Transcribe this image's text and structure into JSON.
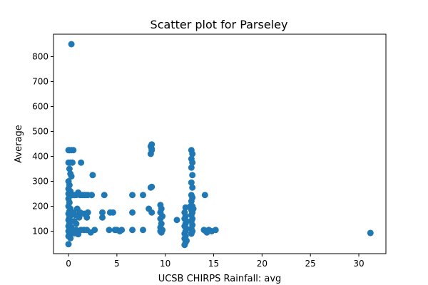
{
  "chart_data": {
    "type": "scatter",
    "title": "Scatter plot for Parseley",
    "xlabel": "UCSB CHIRPS Rainfall: avg",
    "ylabel": "Average",
    "xlim": [
      -1.55,
      32.8
    ],
    "ylim": [
      10,
      890
    ],
    "xticks": [
      0,
      5,
      10,
      15,
      20,
      25,
      30
    ],
    "yticks": [
      100,
      200,
      300,
      400,
      500,
      600,
      700,
      800
    ],
    "grid": false,
    "marker_color": "#1f77b4",
    "points": [
      [
        0.3,
        850
      ],
      [
        0.0,
        425
      ],
      [
        0.3,
        425
      ],
      [
        0.5,
        425
      ],
      [
        0.1,
        425
      ],
      [
        0.0,
        375
      ],
      [
        0.2,
        375
      ],
      [
        0.4,
        375
      ],
      [
        1.3,
        375
      ],
      [
        0.1,
        350
      ],
      [
        0.2,
        330
      ],
      [
        0.3,
        320
      ],
      [
        2.5,
        325
      ],
      [
        0.0,
        300
      ],
      [
        0.1,
        285
      ],
      [
        0.0,
        270
      ],
      [
        0.2,
        260
      ],
      [
        0.0,
        250
      ],
      [
        0.2,
        245
      ],
      [
        0.4,
        245
      ],
      [
        0.6,
        245
      ],
      [
        0.8,
        245
      ],
      [
        1.0,
        255
      ],
      [
        1.2,
        245
      ],
      [
        1.4,
        245
      ],
      [
        1.6,
        245
      ],
      [
        1.8,
        245
      ],
      [
        2.0,
        245
      ],
      [
        2.4,
        245
      ],
      [
        3.7,
        245
      ],
      [
        6.6,
        245
      ],
      [
        7.7,
        245
      ],
      [
        0.0,
        230
      ],
      [
        0.1,
        215
      ],
      [
        0.0,
        200
      ],
      [
        0.2,
        190
      ],
      [
        0.1,
        180
      ],
      [
        0.0,
        170
      ],
      [
        0.3,
        165
      ],
      [
        0.1,
        155
      ],
      [
        0.0,
        145
      ],
      [
        0.2,
        140
      ],
      [
        0.1,
        130
      ],
      [
        0.0,
        120
      ],
      [
        0.3,
        115
      ],
      [
        0.1,
        108
      ],
      [
        0.0,
        100
      ],
      [
        0.2,
        95
      ],
      [
        0.1,
        88
      ],
      [
        0.0,
        80
      ],
      [
        0.2,
        72
      ],
      [
        0.0,
        48
      ],
      [
        0.5,
        175
      ],
      [
        0.7,
        165
      ],
      [
        0.9,
        190
      ],
      [
        1.2,
        175
      ],
      [
        1.6,
        170
      ],
      [
        2.0,
        175
      ],
      [
        1.1,
        155
      ],
      [
        1.9,
        155
      ],
      [
        0.6,
        140
      ],
      [
        0.8,
        130
      ],
      [
        0.5,
        105
      ],
      [
        0.8,
        105
      ],
      [
        1.0,
        100
      ],
      [
        1.3,
        105
      ],
      [
        1.6,
        105
      ],
      [
        1.9,
        105
      ],
      [
        2.3,
        95
      ],
      [
        2.7,
        105
      ],
      [
        0.6,
        92
      ],
      [
        1.0,
        88
      ],
      [
        3.5,
        175
      ],
      [
        4.3,
        175
      ],
      [
        4.6,
        175
      ],
      [
        3.5,
        155
      ],
      [
        4.2,
        105
      ],
      [
        4.8,
        105
      ],
      [
        5.0,
        105
      ],
      [
        5.3,
        100
      ],
      [
        5.5,
        105
      ],
      [
        6.6,
        175
      ],
      [
        6.6,
        105
      ],
      [
        7.7,
        105
      ],
      [
        8.3,
        190
      ],
      [
        8.6,
        175
      ],
      [
        8.5,
        275
      ],
      [
        8.6,
        278
      ],
      [
        8.5,
        410
      ],
      [
        8.6,
        425
      ],
      [
        8.5,
        440
      ],
      [
        8.6,
        448
      ],
      [
        8.6,
        430
      ],
      [
        9.5,
        205
      ],
      [
        9.6,
        190
      ],
      [
        9.5,
        175
      ],
      [
        9.7,
        160
      ],
      [
        9.5,
        150
      ],
      [
        9.6,
        130
      ],
      [
        9.5,
        115
      ],
      [
        9.7,
        105
      ],
      [
        9.6,
        95
      ],
      [
        9.5,
        100
      ],
      [
        11.2,
        145
      ],
      [
        12.1,
        195
      ],
      [
        12.0,
        175
      ],
      [
        12.1,
        160
      ],
      [
        12.0,
        150
      ],
      [
        12.2,
        140
      ],
      [
        12.1,
        130
      ],
      [
        12.0,
        120
      ],
      [
        12.2,
        110
      ],
      [
        12.1,
        100
      ],
      [
        12.0,
        90
      ],
      [
        12.1,
        80
      ],
      [
        12.0,
        70
      ],
      [
        12.2,
        62
      ],
      [
        12.1,
        55
      ],
      [
        12.0,
        45
      ],
      [
        12.7,
        425
      ],
      [
        12.8,
        410
      ],
      [
        12.7,
        390
      ],
      [
        12.8,
        375
      ],
      [
        12.7,
        355
      ],
      [
        12.8,
        325
      ],
      [
        12.7,
        295
      ],
      [
        12.8,
        275
      ],
      [
        12.7,
        245
      ],
      [
        12.8,
        235
      ],
      [
        12.7,
        220
      ],
      [
        12.8,
        200
      ],
      [
        12.7,
        185
      ],
      [
        12.8,
        175
      ],
      [
        12.7,
        165
      ],
      [
        12.8,
        150
      ],
      [
        12.7,
        140
      ],
      [
        12.8,
        125
      ],
      [
        12.7,
        110
      ],
      [
        12.8,
        100
      ],
      [
        12.7,
        90
      ],
      [
        12.6,
        200
      ],
      [
        12.9,
        190
      ],
      [
        14.1,
        245
      ],
      [
        14.0,
        105
      ],
      [
        14.2,
        100
      ],
      [
        14.3,
        95
      ],
      [
        14.5,
        105
      ],
      [
        14.8,
        100
      ],
      [
        15.2,
        105
      ],
      [
        31.2,
        93
      ]
    ]
  }
}
